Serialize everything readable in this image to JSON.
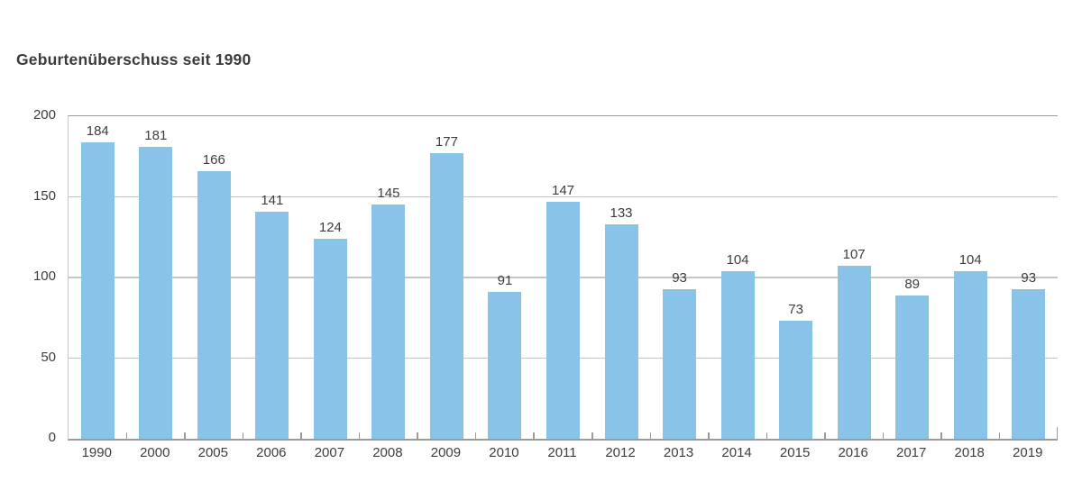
{
  "page": {
    "background": "#ffffff"
  },
  "chart_data": {
    "type": "bar",
    "title": "Geburtenüberschuss seit 1990",
    "categories": [
      "1990",
      "2000",
      "2005",
      "2006",
      "2007",
      "2008",
      "2009",
      "2010",
      "2011",
      "2012",
      "2013",
      "2014",
      "2015",
      "2016",
      "2017",
      "2018",
      "2019"
    ],
    "values": [
      184,
      181,
      166,
      141,
      124,
      145,
      177,
      91,
      147,
      133,
      93,
      104,
      73,
      107,
      89,
      104,
      93
    ],
    "xlabel": "",
    "ylabel": "",
    "ylim": [
      0,
      200
    ],
    "yticks": [
      0,
      50,
      100,
      150,
      200
    ],
    "grid": true,
    "legend": false,
    "value_labels": true,
    "bar_color": "#89C3E8",
    "label_color": "#3d3d3d",
    "axis_color": "#9b9b9b",
    "grid_color": "#c6c6c6",
    "title_color": "#3b3b3b"
  }
}
